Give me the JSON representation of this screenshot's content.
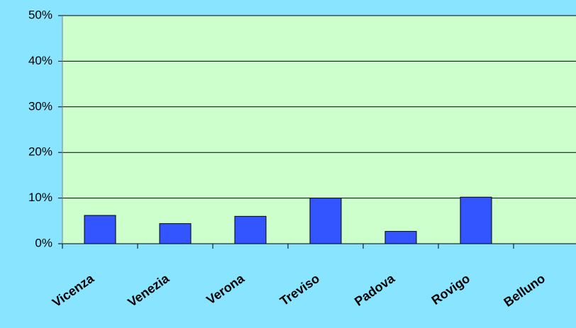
{
  "chart_data": {
    "type": "bar",
    "categories": [
      "Vicenza",
      "Venezia",
      "Verona",
      "Treviso",
      "Padova",
      "Rovigo",
      "Belluno"
    ],
    "values": [
      6.2,
      4.4,
      6.0,
      10.0,
      2.7,
      10.2,
      0
    ],
    "color": "#3355ff",
    "ylim": [
      0,
      50
    ],
    "yticks": [
      {
        "value": 0,
        "label": "0%"
      },
      {
        "value": 10,
        "label": "10%"
      },
      {
        "value": 20,
        "label": "20%"
      },
      {
        "value": 30,
        "label": "30%"
      },
      {
        "value": 40,
        "label": "40%"
      },
      {
        "value": 50,
        "label": "50%"
      }
    ],
    "grid": true
  }
}
